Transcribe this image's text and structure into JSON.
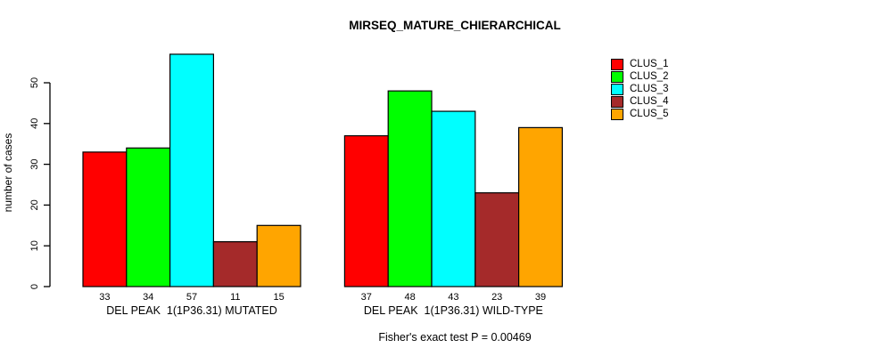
{
  "chart_data": {
    "type": "bar",
    "title": "MIRSEQ_MATURE_CHIERARCHICAL",
    "ylabel": "number of cases",
    "xlabel": "",
    "ylim": [
      0,
      57
    ],
    "yticks": [
      0,
      10,
      20,
      30,
      40,
      50
    ],
    "grid": false,
    "legend_position": "right",
    "bar_value_labels_shown": true,
    "categories": [
      "DEL PEAK  1(1P36.31) MUTATED",
      "DEL PEAK  1(1P36.31) WILD-TYPE"
    ],
    "series": [
      {
        "name": "CLUS_1",
        "color": "#FF0000",
        "values": [
          33,
          37
        ]
      },
      {
        "name": "CLUS_2",
        "color": "#00FF00",
        "values": [
          34,
          48
        ]
      },
      {
        "name": "CLUS_3",
        "color": "#00FFFF",
        "values": [
          57,
          43
        ]
      },
      {
        "name": "CLUS_4",
        "color": "#A52A2A",
        "values": [
          11,
          23
        ]
      },
      {
        "name": "CLUS_5",
        "color": "#FFA500",
        "values": [
          15,
          39
        ]
      }
    ],
    "annotation": "Fisher's exact test P = 0.00469",
    "axis_color": "#000000",
    "bar_border_color": "#000000"
  }
}
